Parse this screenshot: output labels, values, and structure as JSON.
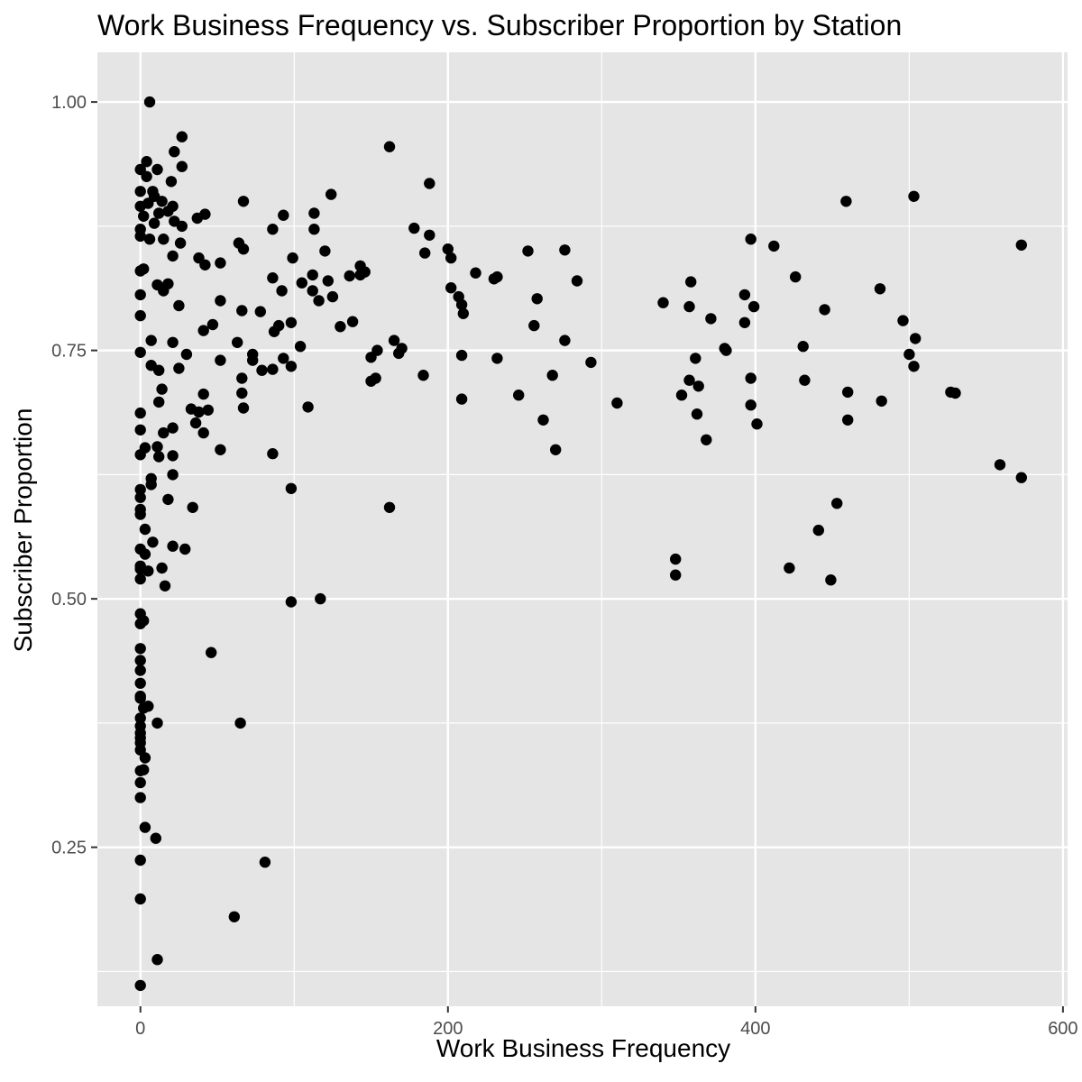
{
  "chart_data": {
    "type": "scatter",
    "title": "Work Business Frequency vs. Subscriber Proportion by Station",
    "xlabel": "Work Business Frequency",
    "ylabel": "Subscriber Proportion",
    "xlim": [
      -28,
      603
    ],
    "ylim": [
      0.09,
      1.05
    ],
    "x_ticks": [
      0,
      200,
      400,
      600
    ],
    "x_tick_labels": [
      "0",
      "200",
      "400",
      "600"
    ],
    "y_ticks": [
      0.25,
      0.5,
      0.75,
      1.0
    ],
    "y_tick_labels": [
      "0.25",
      "0.50",
      "0.75",
      "1.00"
    ],
    "grid": true,
    "legend": "none",
    "colors": {
      "panel": "#e5e5e5",
      "grid": "#ffffff",
      "point": "#000000",
      "tick": "#333333"
    },
    "points": [
      [
        6,
        1.0
      ],
      [
        27,
        0.965
      ],
      [
        162,
        0.955
      ],
      [
        22,
        0.95
      ],
      [
        4,
        0.94
      ],
      [
        27,
        0.935
      ],
      [
        0,
        0.932
      ],
      [
        11,
        0.932
      ],
      [
        4,
        0.925
      ],
      [
        20,
        0.92
      ],
      [
        188,
        0.918
      ],
      [
        8,
        0.91
      ],
      [
        0,
        0.91
      ],
      [
        124,
        0.907
      ],
      [
        503,
        0.905
      ],
      [
        9,
        0.905
      ],
      [
        67,
        0.9
      ],
      [
        459,
        0.9
      ],
      [
        14,
        0.9
      ],
      [
        5,
        0.898
      ],
      [
        21,
        0.895
      ],
      [
        0,
        0.895
      ],
      [
        18,
        0.89
      ],
      [
        12,
        0.888
      ],
      [
        42,
        0.887
      ],
      [
        93,
        0.886
      ],
      [
        113,
        0.888
      ],
      [
        37,
        0.883
      ],
      [
        2,
        0.885
      ],
      [
        22,
        0.88
      ],
      [
        9,
        0.878
      ],
      [
        27,
        0.875
      ],
      [
        0,
        0.872
      ],
      [
        86,
        0.872
      ],
      [
        178,
        0.873
      ],
      [
        113,
        0.872
      ],
      [
        188,
        0.866
      ],
      [
        0,
        0.865
      ],
      [
        6,
        0.862
      ],
      [
        15,
        0.862
      ],
      [
        397,
        0.862
      ],
      [
        64,
        0.858
      ],
      [
        26,
        0.858
      ],
      [
        573,
        0.856
      ],
      [
        412,
        0.855
      ],
      [
        67,
        0.852
      ],
      [
        120,
        0.85
      ],
      [
        200,
        0.852
      ],
      [
        252,
        0.85
      ],
      [
        276,
        0.851
      ],
      [
        185,
        0.848
      ],
      [
        21,
        0.845
      ],
      [
        38,
        0.843
      ],
      [
        99,
        0.843
      ],
      [
        202,
        0.843
      ],
      [
        52,
        0.838
      ],
      [
        42,
        0.836
      ],
      [
        143,
        0.835
      ],
      [
        2,
        0.832
      ],
      [
        0,
        0.83
      ],
      [
        218,
        0.828
      ],
      [
        146,
        0.829
      ],
      [
        136,
        0.825
      ],
      [
        112,
        0.826
      ],
      [
        232,
        0.824
      ],
      [
        230,
        0.822
      ],
      [
        143,
        0.826
      ],
      [
        86,
        0.823
      ],
      [
        426,
        0.824
      ],
      [
        122,
        0.82
      ],
      [
        284,
        0.82
      ],
      [
        358,
        0.819
      ],
      [
        18,
        0.817
      ],
      [
        11,
        0.816
      ],
      [
        105,
        0.818
      ],
      [
        202,
        0.813
      ],
      [
        481,
        0.812
      ],
      [
        112,
        0.81
      ],
      [
        92,
        0.81
      ],
      [
        15,
        0.81
      ],
      [
        0,
        0.806
      ],
      [
        393,
        0.806
      ],
      [
        207,
        0.804
      ],
      [
        125,
        0.804
      ],
      [
        258,
        0.802
      ],
      [
        52,
        0.8
      ],
      [
        116,
        0.8
      ],
      [
        340,
        0.798
      ],
      [
        209,
        0.796
      ],
      [
        25,
        0.795
      ],
      [
        357,
        0.794
      ],
      [
        399,
        0.794
      ],
      [
        445,
        0.791
      ],
      [
        66,
        0.79
      ],
      [
        78,
        0.789
      ],
      [
        210,
        0.787
      ],
      [
        0,
        0.785
      ],
      [
        371,
        0.782
      ],
      [
        496,
        0.78
      ],
      [
        393,
        0.778
      ],
      [
        138,
        0.779
      ],
      [
        98,
        0.778
      ],
      [
        90,
        0.775
      ],
      [
        87,
        0.769
      ],
      [
        256,
        0.775
      ],
      [
        47,
        0.776
      ],
      [
        130,
        0.774
      ],
      [
        41,
        0.77
      ],
      [
        73,
        0.746
      ],
      [
        380,
        0.752
      ],
      [
        504,
        0.762
      ],
      [
        431,
        0.754
      ],
      [
        165,
        0.76
      ],
      [
        104,
        0.754
      ],
      [
        276,
        0.76
      ],
      [
        7,
        0.76
      ],
      [
        21,
        0.758
      ],
      [
        63,
        0.758
      ],
      [
        154,
        0.75
      ],
      [
        170,
        0.752
      ],
      [
        0,
        0.748
      ],
      [
        30,
        0.746
      ],
      [
        381,
        0.75
      ],
      [
        500,
        0.746
      ],
      [
        209,
        0.745
      ],
      [
        168,
        0.747
      ],
      [
        361,
        0.742
      ],
      [
        150,
        0.743
      ],
      [
        93,
        0.742
      ],
      [
        232,
        0.742
      ],
      [
        52,
        0.74
      ],
      [
        73,
        0.74
      ],
      [
        293,
        0.738
      ],
      [
        503,
        0.734
      ],
      [
        98,
        0.734
      ],
      [
        7,
        0.735
      ],
      [
        25,
        0.732
      ],
      [
        79,
        0.73
      ],
      [
        86,
        0.731
      ],
      [
        12,
        0.73
      ],
      [
        184,
        0.725
      ],
      [
        268,
        0.725
      ],
      [
        397,
        0.722
      ],
      [
        357,
        0.72
      ],
      [
        150,
        0.719
      ],
      [
        432,
        0.72
      ],
      [
        66,
        0.722
      ],
      [
        153,
        0.722
      ],
      [
        363,
        0.714
      ],
      [
        530,
        0.707
      ],
      [
        460,
        0.708
      ],
      [
        66,
        0.707
      ],
      [
        352,
        0.705
      ],
      [
        246,
        0.705
      ],
      [
        41,
        0.706
      ],
      [
        527,
        0.708
      ],
      [
        14,
        0.711
      ],
      [
        209,
        0.701
      ],
      [
        12,
        0.698
      ],
      [
        482,
        0.699
      ],
      [
        310,
        0.697
      ],
      [
        397,
        0.695
      ],
      [
        109,
        0.693
      ],
      [
        67,
        0.692
      ],
      [
        33,
        0.691
      ],
      [
        44,
        0.69
      ],
      [
        38,
        0.688
      ],
      [
        362,
        0.686
      ],
      [
        0,
        0.687
      ],
      [
        262,
        0.68
      ],
      [
        460,
        0.68
      ],
      [
        36,
        0.677
      ],
      [
        401,
        0.676
      ],
      [
        21,
        0.672
      ],
      [
        0,
        0.67
      ],
      [
        41,
        0.667
      ],
      [
        15,
        0.667
      ],
      [
        368,
        0.66
      ],
      [
        11,
        0.653
      ],
      [
        3,
        0.652
      ],
      [
        52,
        0.65
      ],
      [
        270,
        0.65
      ],
      [
        86,
        0.646
      ],
      [
        21,
        0.644
      ],
      [
        12,
        0.643
      ],
      [
        0,
        0.645
      ],
      [
        559,
        0.635
      ],
      [
        21,
        0.625
      ],
      [
        7,
        0.621
      ],
      [
        573,
        0.622
      ],
      [
        7,
        0.615
      ],
      [
        98,
        0.611
      ],
      [
        0,
        0.61
      ],
      [
        0,
        0.602
      ],
      [
        18,
        0.6
      ],
      [
        453,
        0.596
      ],
      [
        34,
        0.592
      ],
      [
        162,
        0.592
      ],
      [
        0,
        0.59
      ],
      [
        0,
        0.585
      ],
      [
        3,
        0.57
      ],
      [
        441,
        0.569
      ],
      [
        8,
        0.557
      ],
      [
        21,
        0.553
      ],
      [
        29,
        0.55
      ],
      [
        0,
        0.55
      ],
      [
        3,
        0.545
      ],
      [
        348,
        0.54
      ],
      [
        0,
        0.533
      ],
      [
        14,
        0.531
      ],
      [
        422,
        0.531
      ],
      [
        0,
        0.53
      ],
      [
        5,
        0.528
      ],
      [
        348,
        0.524
      ],
      [
        0,
        0.52
      ],
      [
        449,
        0.519
      ],
      [
        16,
        0.513
      ],
      [
        117,
        0.5
      ],
      [
        98,
        0.497
      ],
      [
        0,
        0.485
      ],
      [
        2,
        0.478
      ],
      [
        0,
        0.475
      ],
      [
        0,
        0.45
      ],
      [
        46,
        0.446
      ],
      [
        0,
        0.438
      ],
      [
        0,
        0.428
      ],
      [
        0,
        0.415
      ],
      [
        0,
        0.402
      ],
      [
        0,
        0.4
      ],
      [
        2,
        0.39
      ],
      [
        5,
        0.392
      ],
      [
        0,
        0.38
      ],
      [
        0,
        0.372
      ],
      [
        11,
        0.375
      ],
      [
        65,
        0.375
      ],
      [
        0,
        0.365
      ],
      [
        0,
        0.36
      ],
      [
        0,
        0.355
      ],
      [
        0,
        0.348
      ],
      [
        3,
        0.34
      ],
      [
        2,
        0.328
      ],
      [
        0,
        0.327
      ],
      [
        0,
        0.315
      ],
      [
        0,
        0.3
      ],
      [
        3,
        0.27
      ],
      [
        10,
        0.259
      ],
      [
        0,
        0.237
      ],
      [
        81,
        0.235
      ],
      [
        0,
        0.198
      ],
      [
        61,
        0.18
      ],
      [
        11,
        0.137
      ],
      [
        0,
        0.111
      ]
    ]
  }
}
